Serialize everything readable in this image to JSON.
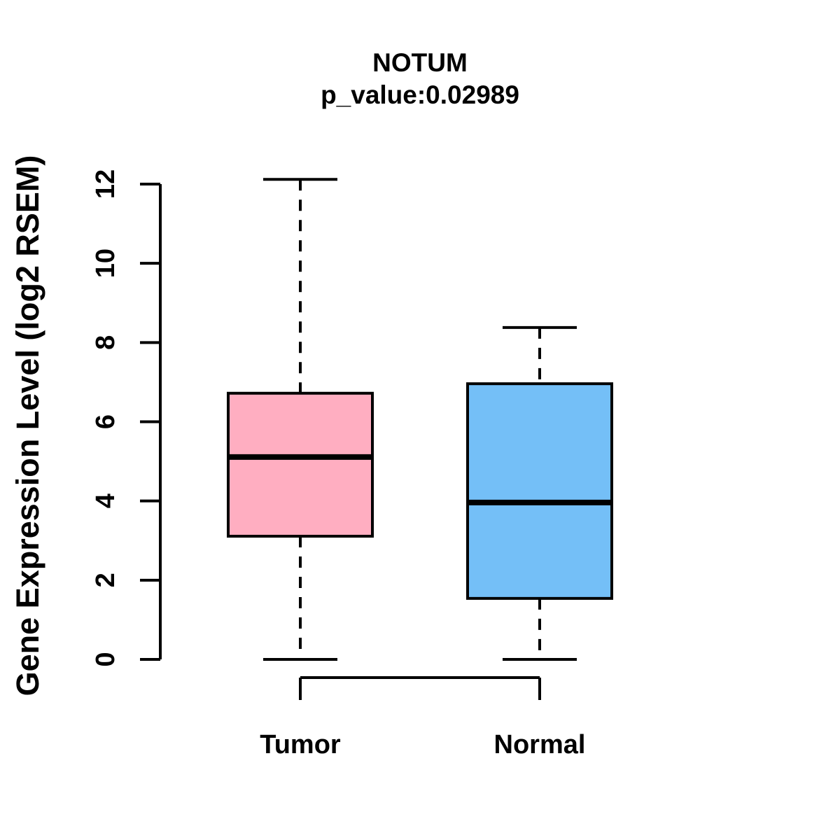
{
  "header": {
    "title": "NOTUM",
    "subtitle": "p_value:0.02989"
  },
  "axes": {
    "y_label": "Gene Expression Level (log2 RSEM)",
    "y_ticks": [
      0,
      2,
      4,
      6,
      8,
      10,
      12
    ],
    "x_categories": [
      "Tumor",
      "Normal"
    ]
  },
  "colors": {
    "line": "#000000",
    "background": "#FFFFFF",
    "tumor_box": "#FFAEC1",
    "normal_box": "#74BFF7"
  },
  "chart_data": {
    "type": "boxplot",
    "title": "NOTUM",
    "subtitle": "p_value:0.02989",
    "xlabel": "",
    "ylabel": "Gene Expression Level (log2 RSEM)",
    "categories": [
      "Tumor",
      "Normal"
    ],
    "ylim": [
      0,
      12.2
    ],
    "yticks": [
      0,
      2,
      4,
      6,
      8,
      10,
      12
    ],
    "grid": false,
    "legend": "none",
    "whisker_style": "dashed",
    "series": [
      {
        "name": "Tumor",
        "color": "#FFAEC1",
        "min": 0,
        "q1": 3.11,
        "median": 5.11,
        "q3": 6.72,
        "max": 12.12
      },
      {
        "name": "Normal",
        "color": "#74BFF7",
        "min": 0,
        "q1": 1.54,
        "median": 3.96,
        "q3": 6.96,
        "max": 8.38
      }
    ]
  }
}
